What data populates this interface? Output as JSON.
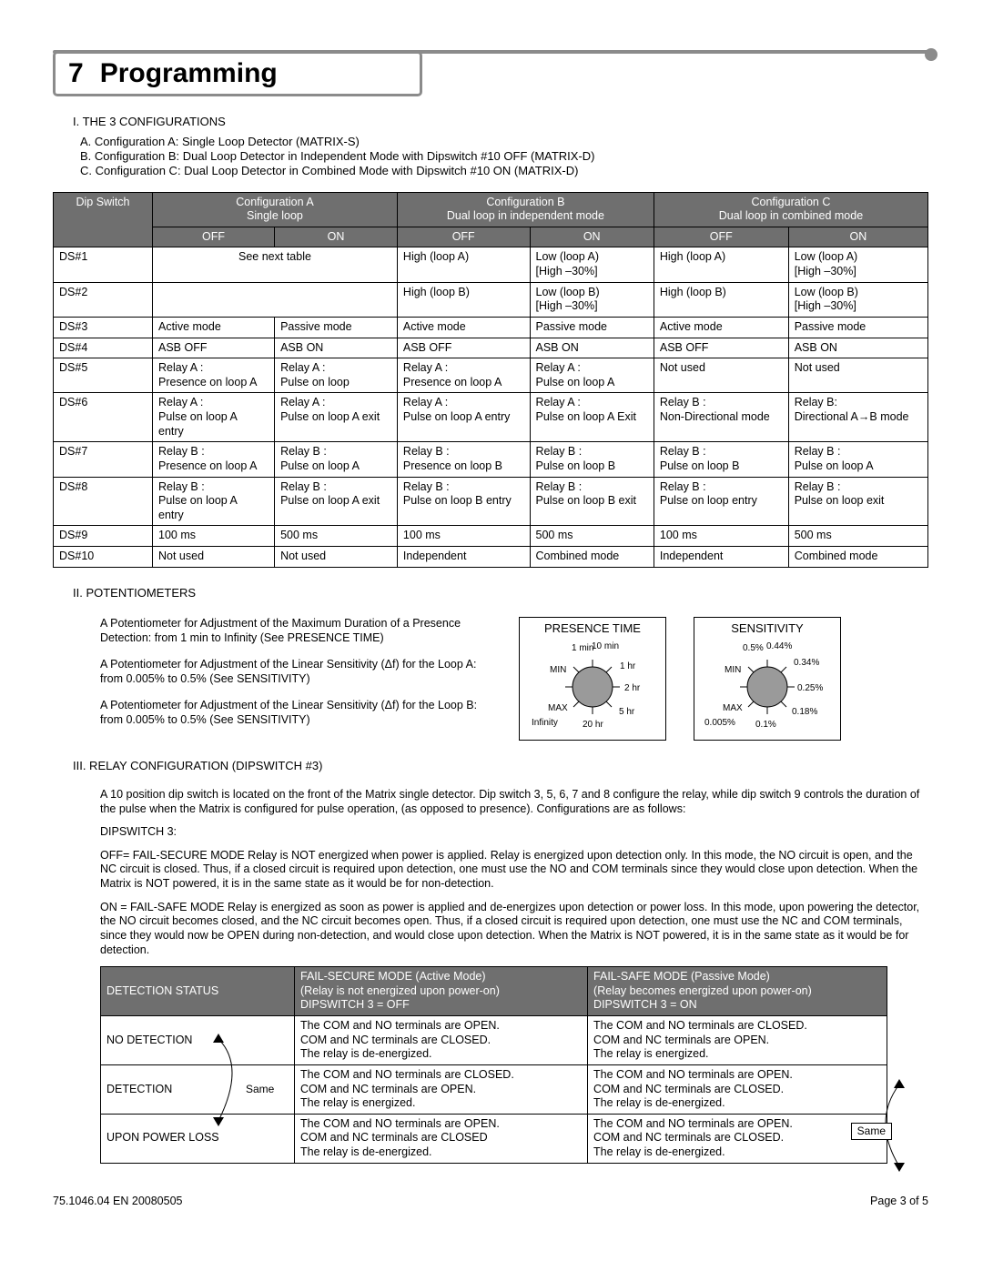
{
  "colors": {
    "bar": "#8b8b8b",
    "header_bg": "#6f6f6f",
    "text_on_header": "#ffffff",
    "border": "#000000"
  },
  "header": {
    "number": "7",
    "title": "Programming"
  },
  "section1": {
    "title": "I.  THE 3 CONFIGURATIONS",
    "items": [
      "A.  Configuration A:  Single Loop Detector (MATRIX-S)",
      "B.  Configuration B:  Dual Loop Detector in Independent Mode with Dipswitch #10 OFF (MATRIX-D)",
      "C.  Configuration C:  Dual Loop Detector in Combined Mode with Dipswitch #10 ON (MATRIX-D)"
    ]
  },
  "table1": {
    "col_label": "Dip Switch",
    "configA": {
      "title": "Configuration A",
      "sub": "Single loop"
    },
    "configB": {
      "title": "Configuration B",
      "sub": "Dual loop in independent mode"
    },
    "configC": {
      "title": "Configuration C",
      "sub": "Dual loop in combined mode"
    },
    "off": "OFF",
    "on": "ON",
    "rows": [
      {
        "label": "DS#1",
        "a_span": "See next table",
        "b_off": "High (loop A)",
        "b_on": "Low (loop A)\n[High –30%]",
        "c_off": "High (loop A)",
        "c_on": "Low (loop A)\n[High –30%]"
      },
      {
        "label": "DS#2",
        "a_span": "",
        "b_off": "High (loop B)",
        "b_on": "Low (loop B)\n[High –30%]",
        "c_off": "High (loop B)",
        "c_on": "Low (loop B)\n[High –30%]"
      },
      {
        "label": "DS#3",
        "a_off": "Active mode",
        "a_on": "Passive mode",
        "b_off": "Active mode",
        "b_on": "Passive mode",
        "c_off": "Active mode",
        "c_on": "Passive mode"
      },
      {
        "label": "DS#4",
        "a_off": "ASB OFF",
        "a_on": "ASB ON",
        "b_off": "ASB OFF",
        "b_on": "ASB ON",
        "c_off": "ASB OFF",
        "c_on": "ASB ON"
      },
      {
        "label": "DS#5",
        "a_off": "Relay A :\nPresence on loop A",
        "a_on": "Relay A :\nPulse on loop",
        "b_off": "Relay A :\nPresence on loop A",
        "b_on": "Relay A :\nPulse on loop A",
        "c_off": "Not used",
        "c_on": "Not used"
      },
      {
        "label": "DS#6",
        "a_off": "Relay A :\nPulse on loop A\nentry",
        "a_on": "Relay A :\nPulse on loop A exit",
        "b_off": "Relay A :\nPulse on loop A entry",
        "b_on": "Relay A :\nPulse on loop A Exit",
        "c_off": "Relay B :\nNon-Directional mode",
        "c_on": "Relay B:\nDirectional A→B mode"
      },
      {
        "label": "DS#7",
        "a_off": "Relay B :\nPresence on loop A",
        "a_on": "Relay B :\nPulse on loop A",
        "b_off": "Relay B :\nPresence on loop B",
        "b_on": "Relay B :\nPulse on loop B",
        "c_off": "Relay B :\nPulse on loop B",
        "c_on": "Relay B :\nPulse on loop A"
      },
      {
        "label": "DS#8",
        "a_off": "Relay B :\nPulse on loop A\nentry",
        "a_on": "Relay B :\nPulse on loop A exit",
        "b_off": "Relay B :\nPulse on loop B entry",
        "b_on": "Relay B :\nPulse on loop B exit",
        "c_off": "Relay B :\nPulse on loop entry",
        "c_on": "Relay B :\nPulse on loop exit"
      },
      {
        "label": "DS#9",
        "a_off": "100 ms",
        "a_on": "500 ms",
        "b_off": "100 ms",
        "b_on": "500 ms",
        "c_off": "100 ms",
        "c_on": "500 ms"
      },
      {
        "label": "DS#10",
        "a_off": "Not used",
        "a_on": "Not used",
        "b_off": "Independent",
        "b_on": "Combined mode",
        "c_off": "Independent",
        "c_on": "Combined mode"
      }
    ]
  },
  "section2": {
    "title": "II.  POTENTIOMETERS",
    "p1": "A Potentiometer for Adjustment of the Maximum Duration of a Presence Detection:  from 1 min to Infinity (See PRESENCE TIME)",
    "p2a": "A Potentiometer for Adjustment of the Linear Sensitivity (Δf) for the Loop A:  from 0.005% to 0.5% (See SENSITIVITY)",
    "p2b": "A Potentiometer for Adjustment of the Linear Sensitivity (Δf) for the Loop B:  from 0.005% to 0.5% (See SENSITIVITY)"
  },
  "dials": {
    "presence": {
      "title": "PRESENCE TIME",
      "labels": [
        "1 min",
        "10 min",
        "1 hr",
        "2 hr",
        "5 hr",
        "20 hr",
        "Infinity",
        "MAX",
        "MIN"
      ]
    },
    "sensitivity": {
      "title": "SENSITIVITY",
      "labels": [
        "0.5%",
        "0.44%",
        "0.34%",
        "0.25%",
        "0.18%",
        "0.1%",
        "0.005%",
        "MAX",
        "MIN"
      ]
    }
  },
  "section3": {
    "title": "III.  RELAY CONFIGURATION (DIPSWITCH #3)",
    "intro": "A 10 position dip switch is located on the front of the Matrix single detector.  Dip switch 3, 5, 6, 7 and 8 configure the relay, while dip switch 9 controls the duration of the pulse when the Matrix is configured for pulse operation, (as opposed to presence).  Configurations are as follows:",
    "ds3_label": "DIPSWITCH 3:",
    "off_text": "OFF= FAIL-SECURE MODE Relay is NOT energized when power is applied.  Relay is energized upon detection only.  In this mode, the NO circuit is open, and the NC circuit is closed.  Thus, if a closed circuit is required upon detection, one must use the NO and COM terminals since they would close upon detection.  When the Matrix is NOT powered, it is in the same state as it would be for non-detection.",
    "on_text": "ON = FAIL-SAFE MODE Relay is energized as soon as power is applied and de-energizes upon detection or power loss.  In this mode, upon powering the detector, the NO circuit becomes closed, and the NC circuit becomes open.  Thus, if a closed circuit is required upon detection, one must use the NC and COM terminals, since they would now be OPEN during non-detection, and would close upon detection.  When the Matrix is NOT powered, it is in the same state as it would be for detection."
  },
  "table2": {
    "h1": "DETECTION STATUS",
    "h2a": "FAIL-SECURE MODE (Active Mode)",
    "h2b": "(Relay is not energized upon power-on)",
    "h2c": "DIPSWITCH 3 = OFF",
    "h3a": "FAIL-SAFE MODE (Passive Mode)",
    "h3b": "(Relay becomes energized upon power-on)",
    "h3c": "DIPSWITCH 3 = ON",
    "rows": [
      {
        "status": "NO DETECTION",
        "secure": "The COM and NO terminals are OPEN.\nCOM and NC terminals are CLOSED.\nThe relay is de-energized.",
        "safe": "The COM and NO terminals are CLOSED.\nCOM and NC terminals are OPEN.\nThe relay is energized."
      },
      {
        "status": "DETECTION",
        "secure": "The COM and NO terminals are CLOSED.\nCOM and NC terminals are OPEN.\nThe relay is energized.",
        "safe": "The COM and NO terminals are OPEN.\nCOM and NC terminals are CLOSED.\nThe relay is de-energized."
      },
      {
        "status": "UPON POWER LOSS",
        "secure": "The COM and NO terminals are OPEN.\nCOM and NC terminals are CLOSED\nThe relay is de-energized.",
        "safe": "The COM and NO terminals are OPEN.\nCOM and NC terminals are CLOSED.\nThe relay is de-energized."
      }
    ],
    "same": "Same"
  },
  "footer": {
    "left": "75.1046.04   EN  20080505",
    "right": "Page 3 of 5"
  }
}
